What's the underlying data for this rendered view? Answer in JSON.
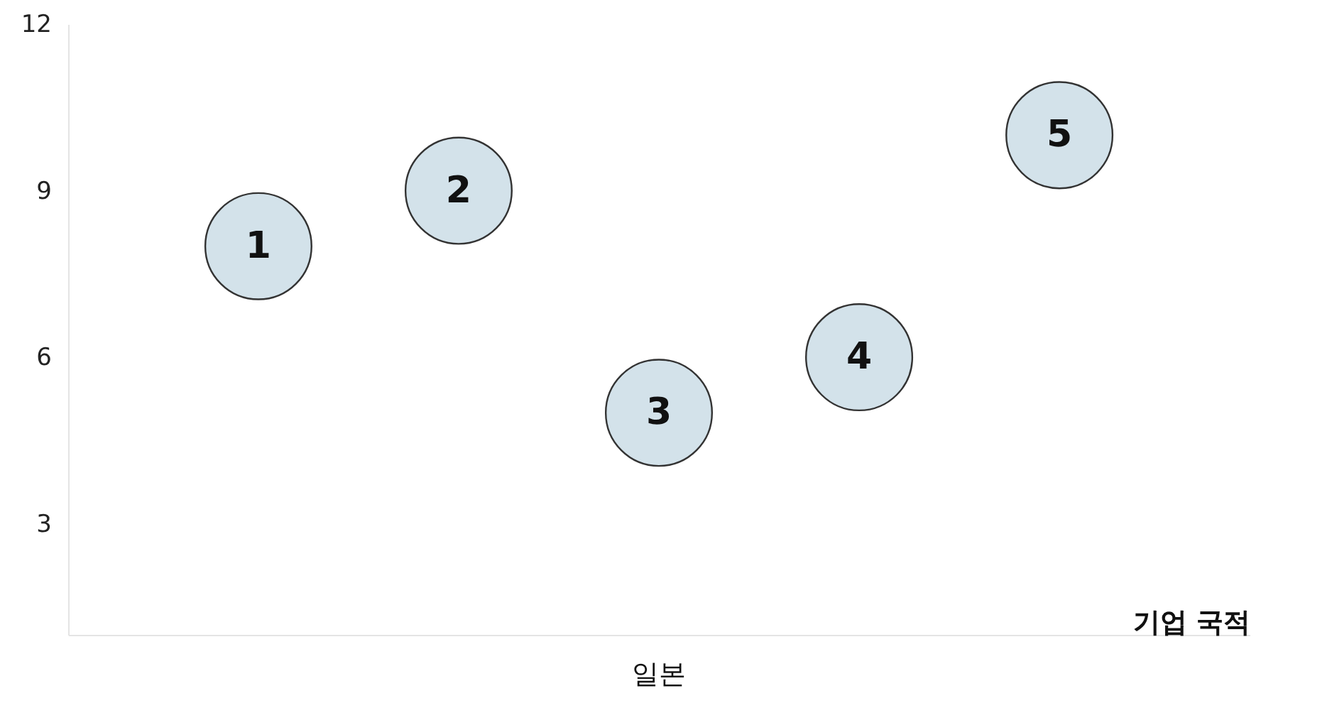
{
  "chart_data": {
    "type": "scatter",
    "categories": [
      "1",
      "2",
      "3",
      "4",
      "5"
    ],
    "series": [
      {
        "color": "#d3e2ea",
        "values": [
          8,
          9,
          5,
          6,
          10
        ]
      }
    ],
    "xlabel": "기업 국적",
    "annotations": [
      "일본"
    ],
    "ylim": [
      1,
      12
    ],
    "yticks": [
      3,
      6,
      9,
      12
    ],
    "grid": false,
    "marker": "circle"
  }
}
